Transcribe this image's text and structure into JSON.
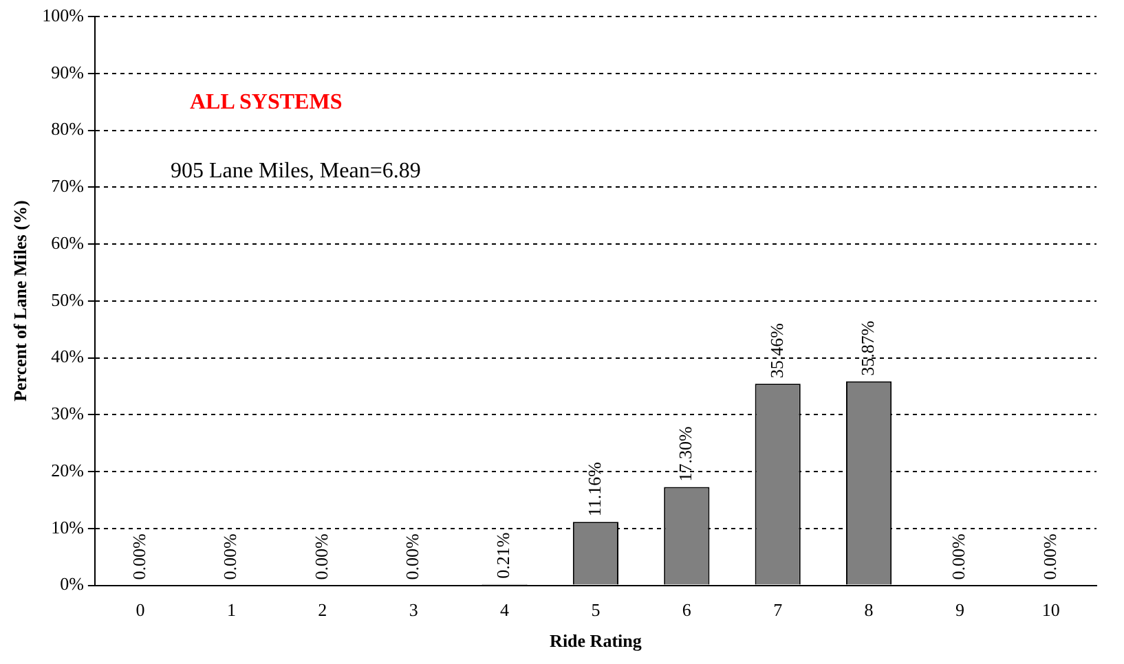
{
  "chart_data": {
    "type": "bar",
    "xlabel": "Ride Rating",
    "ylabel": "Percent of Lane Miles (%)",
    "annotations": [
      "ALL SYSTEMS",
      "905 Lane Miles, Mean=6.89"
    ],
    "categories": [
      "0",
      "1",
      "2",
      "3",
      "4",
      "5",
      "6",
      "7",
      "8",
      "9",
      "10"
    ],
    "values": [
      0,
      0,
      0,
      0,
      0.21,
      11.16,
      17.3,
      35.46,
      35.87,
      0,
      0
    ],
    "value_labels": [
      "0.00%",
      "0.00%",
      "0.00%",
      "0.00%",
      "0.21%",
      "11.16%",
      "17.30%",
      "35.46%",
      "35.87%",
      "0.00%",
      "0.00%"
    ],
    "color": "#808080",
    "ylim": [
      0,
      100
    ],
    "yticks": [
      {
        "value": 0,
        "label": "0%"
      },
      {
        "value": 10,
        "label": "10%"
      },
      {
        "value": 20,
        "label": "20%"
      },
      {
        "value": 30,
        "label": "30%"
      },
      {
        "value": 40,
        "label": "40%"
      },
      {
        "value": 50,
        "label": "50%"
      },
      {
        "value": 60,
        "label": "60%"
      },
      {
        "value": 70,
        "label": "70%"
      },
      {
        "value": 80,
        "label": "80%"
      },
      {
        "value": 90,
        "label": "90%"
      },
      {
        "value": 100,
        "label": "100%"
      }
    ],
    "grid": "y",
    "legend": false
  }
}
